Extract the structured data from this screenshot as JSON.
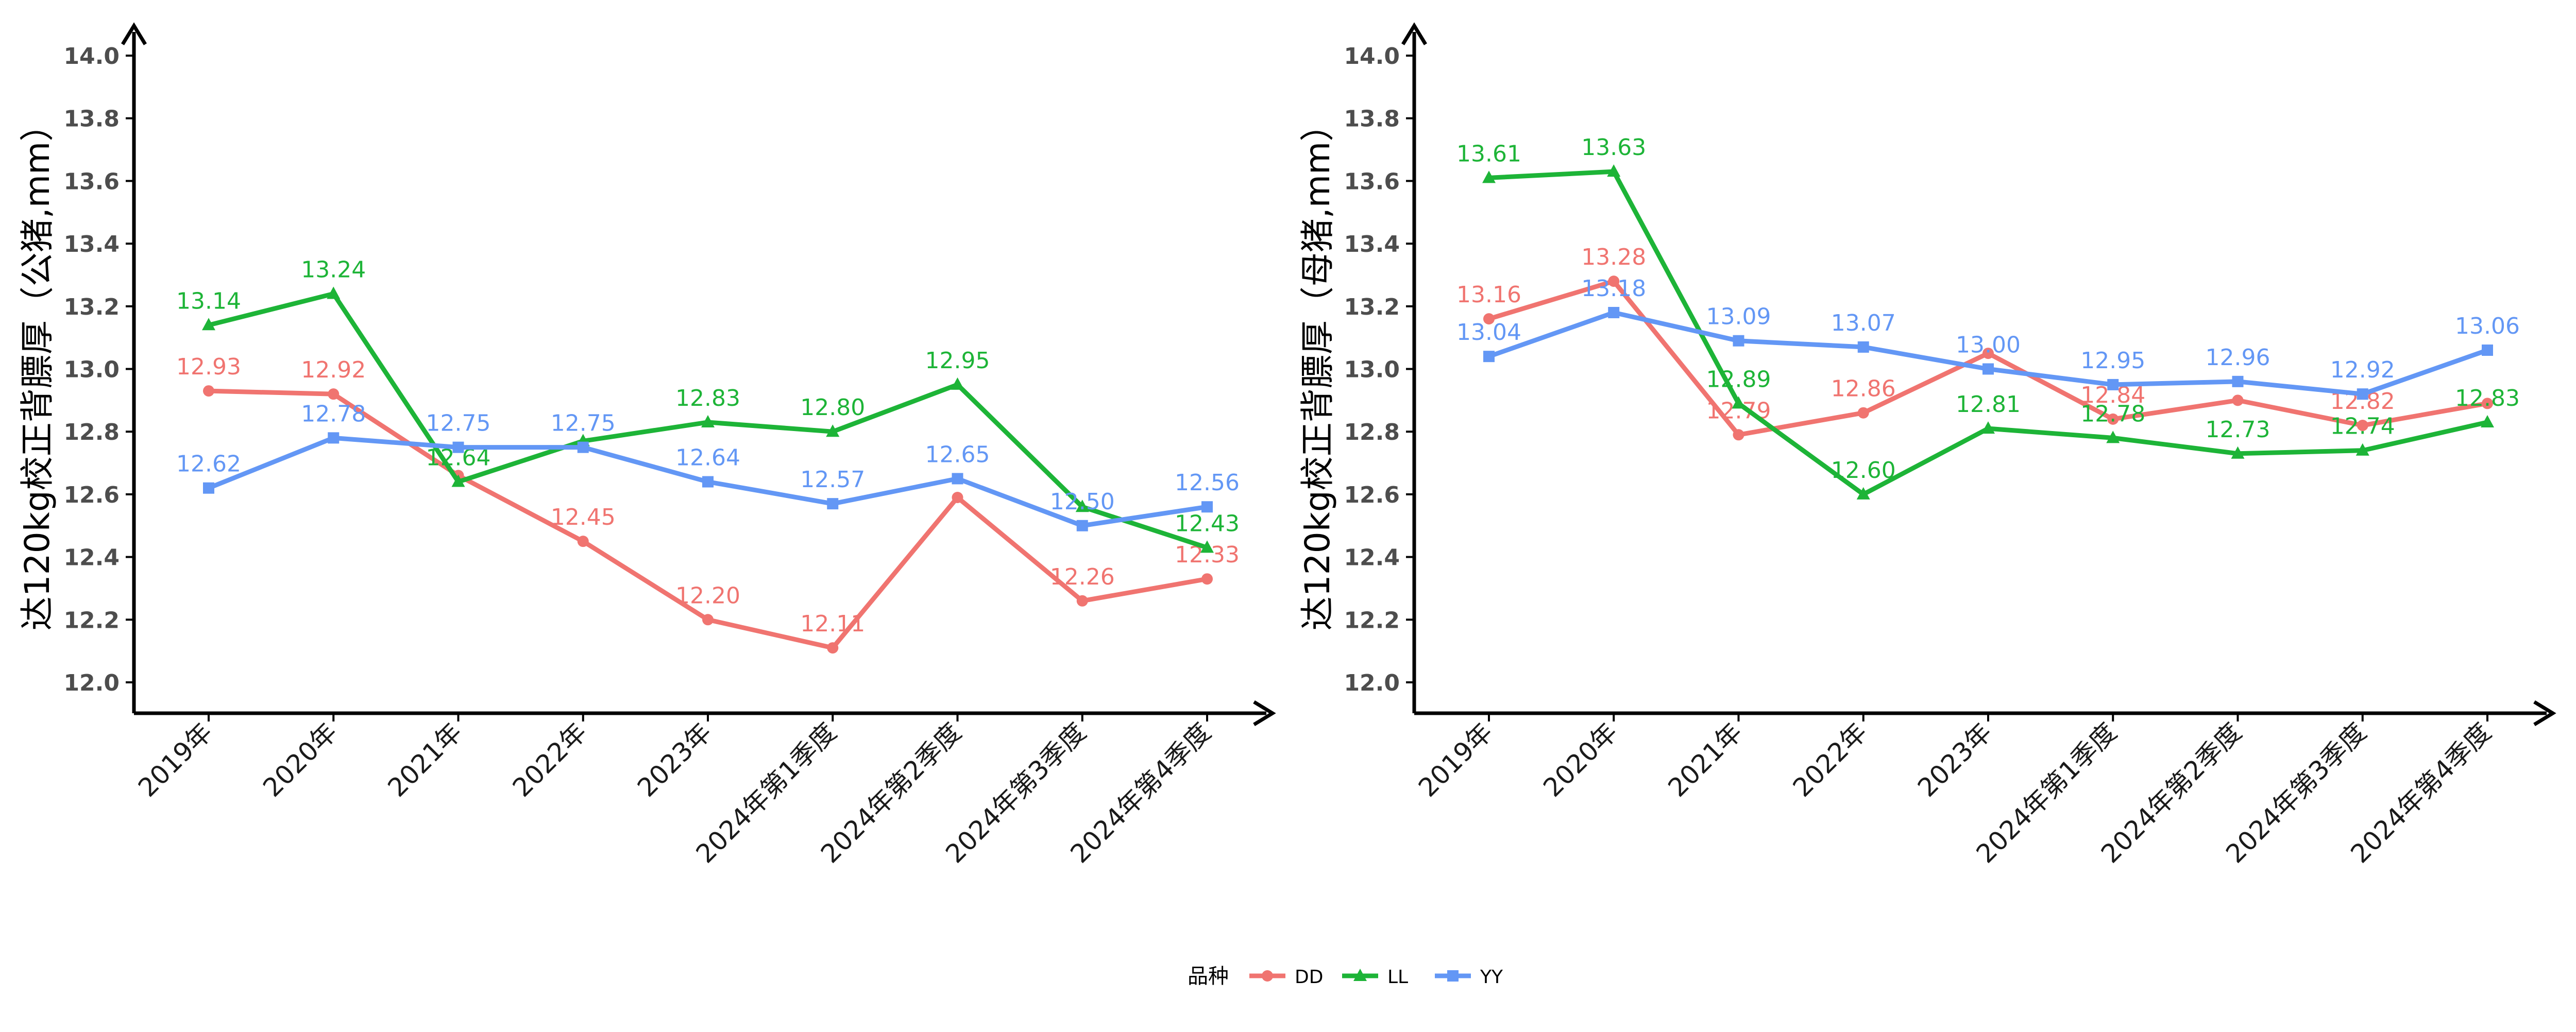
{
  "colors": {
    "DD": "#F07470",
    "LL": "#1DB437",
    "YY": "#6397F5",
    "axis": "#000000",
    "tick_text": "#4D4D4D"
  },
  "legend": {
    "title": "品种",
    "position": "bottom",
    "items": [
      {
        "name": "DD",
        "marker": "circle"
      },
      {
        "name": "LL",
        "marker": "triangle"
      },
      {
        "name": "YY",
        "marker": "square"
      }
    ]
  },
  "chart_data": [
    {
      "type": "line",
      "title": "",
      "xlabel": "",
      "ylabel": "达120kg校正背膘厚（公猪,mm）",
      "ylim": [
        12.0,
        14.0
      ],
      "yticks": [
        "12.0",
        "12.2",
        "12.4",
        "12.6",
        "12.8",
        "13.0",
        "13.2",
        "13.4",
        "13.6",
        "13.8",
        "14.0"
      ],
      "grid": false,
      "categories": [
        "2019年",
        "2020年",
        "2021年",
        "2022年",
        "2023年",
        "2024年第1季度",
        "2024年第2季度",
        "2024年第3季度",
        "2024年第4季度"
      ],
      "series": [
        {
          "name": "DD",
          "values": [
            12.93,
            12.92,
            12.66,
            12.45,
            12.2,
            12.11,
            12.59,
            12.26,
            12.33
          ],
          "labels": [
            "12.93",
            "12.92",
            "",
            "12.45",
            "12.20",
            "12.11",
            "",
            "12.26",
            "12.33"
          ]
        },
        {
          "name": "LL",
          "values": [
            13.14,
            13.24,
            12.64,
            12.77,
            12.83,
            12.8,
            12.95,
            12.56,
            12.43
          ],
          "labels": [
            "13.14",
            "13.24",
            "12.64",
            "",
            "12.83",
            "12.80",
            "12.95",
            "",
            "12.43"
          ]
        },
        {
          "name": "YY",
          "values": [
            12.62,
            12.78,
            12.75,
            12.75,
            12.64,
            12.57,
            12.65,
            12.5,
            12.56
          ],
          "labels": [
            "12.62",
            "12.78",
            "12.75",
            "12.75",
            "12.64",
            "12.57",
            "12.65",
            "12.50",
            "12.56"
          ]
        }
      ]
    },
    {
      "type": "line",
      "title": "",
      "xlabel": "",
      "ylabel": "达120kg校正背膘厚（母猪,mm）",
      "ylim": [
        12.0,
        14.0
      ],
      "yticks": [
        "12.0",
        "12.2",
        "12.4",
        "12.6",
        "12.8",
        "13.0",
        "13.2",
        "13.4",
        "13.6",
        "13.8",
        "14.0"
      ],
      "grid": false,
      "categories": [
        "2019年",
        "2020年",
        "2021年",
        "2022年",
        "2023年",
        "2024年第1季度",
        "2024年第2季度",
        "2024年第3季度",
        "2024年第4季度"
      ],
      "series": [
        {
          "name": "DD",
          "values": [
            13.16,
            13.28,
            12.79,
            12.86,
            13.05,
            12.84,
            12.9,
            12.82,
            12.89
          ],
          "labels": [
            "13.16",
            "13.28",
            "12.79",
            "12.86",
            "",
            "12.84",
            "",
            "12.82",
            ""
          ]
        },
        {
          "name": "LL",
          "values": [
            13.61,
            13.63,
            12.89,
            12.6,
            12.81,
            12.78,
            12.73,
            12.74,
            12.83
          ],
          "labels": [
            "13.61",
            "13.63",
            "12.89",
            "12.60",
            "12.81",
            "12.78",
            "12.73",
            "12.74",
            "12.83"
          ]
        },
        {
          "name": "YY",
          "values": [
            13.04,
            13.18,
            13.09,
            13.07,
            13.0,
            12.95,
            12.96,
            12.92,
            13.06
          ],
          "labels": [
            "13.04",
            "13.18",
            "13.09",
            "13.07",
            "13.00",
            "12.95",
            "12.96",
            "12.92",
            "13.06"
          ]
        }
      ]
    }
  ]
}
